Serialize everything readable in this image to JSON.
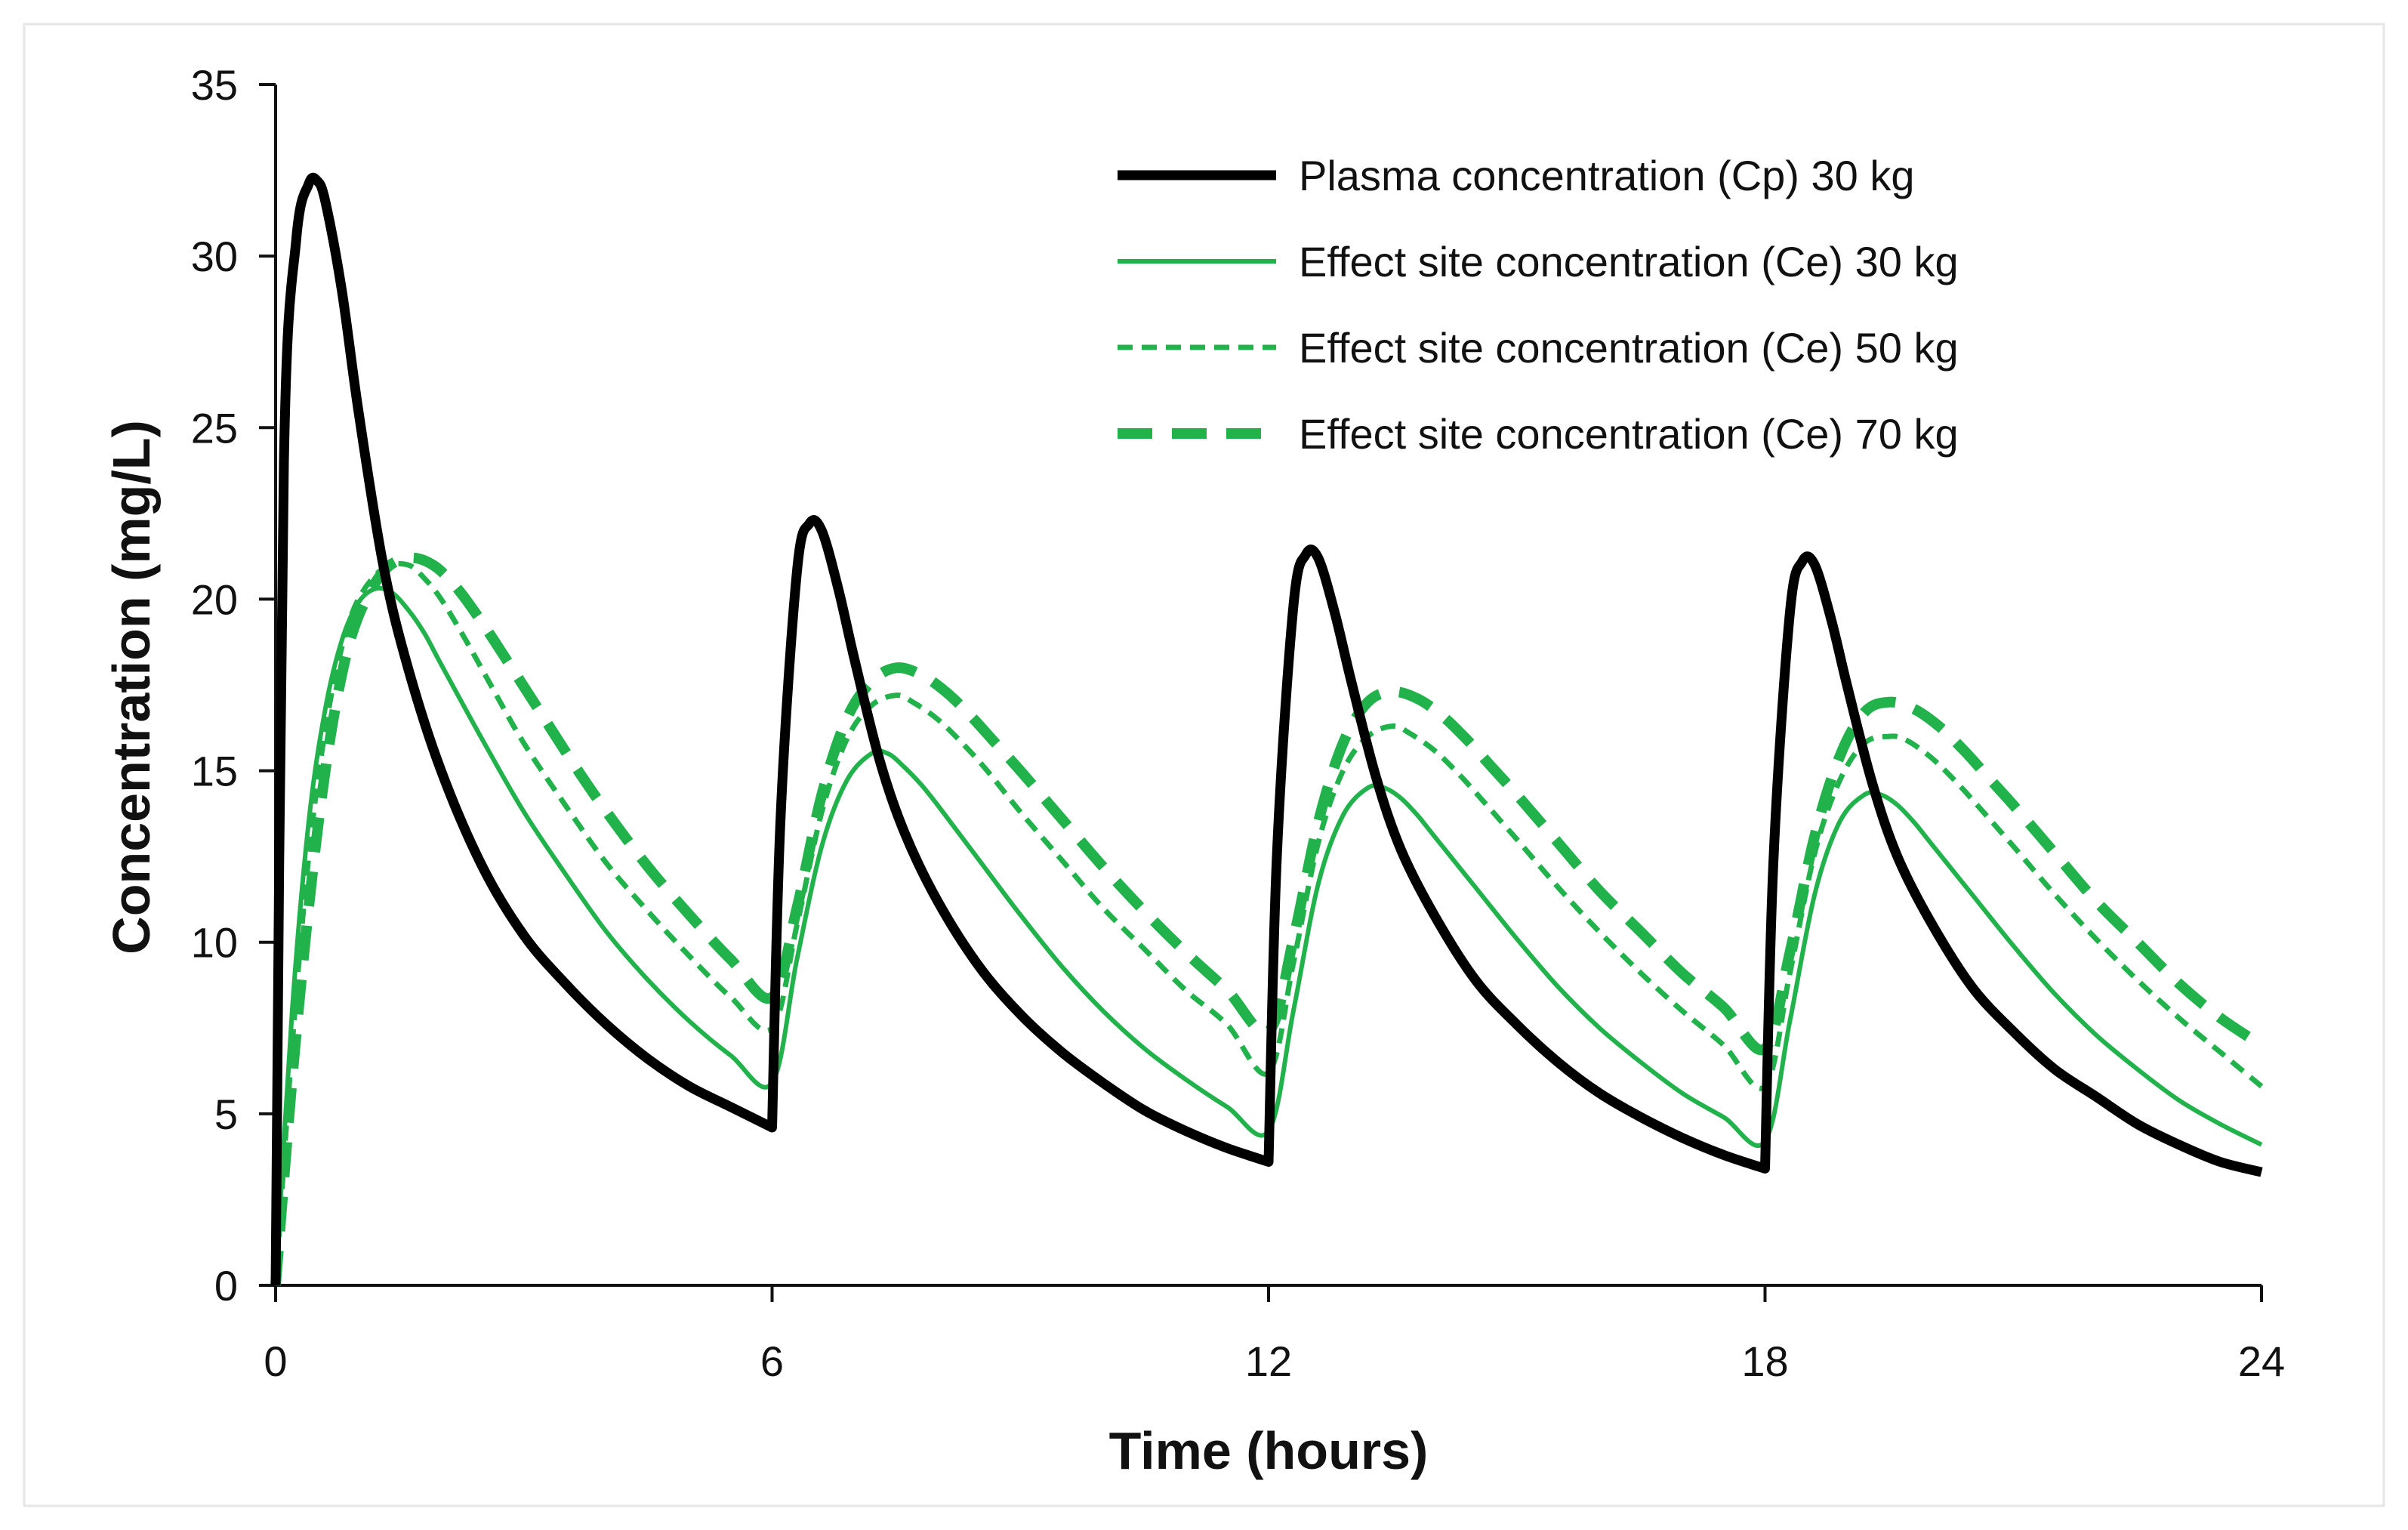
{
  "chart_data": {
    "type": "line",
    "title": "",
    "xlabel": "Time (hours)",
    "ylabel": "Concentration (mg/L)",
    "xlim": [
      0,
      24
    ],
    "ylim": [
      0,
      35
    ],
    "xticks": [
      0,
      6,
      12,
      18,
      24
    ],
    "yticks": [
      0,
      5,
      10,
      15,
      20,
      25,
      30,
      35
    ],
    "xtick_labels": [
      "0",
      "6",
      "12",
      "18",
      "24"
    ],
    "ytick_labels": [
      "0",
      "5",
      "10",
      "15",
      "20",
      "25",
      "30",
      "35"
    ],
    "grid": false,
    "legend_position": "top-right",
    "series": [
      {
        "name": "Plasma concentration (Cp) 30 kg",
        "color": "#000000",
        "style": "solid-thick",
        "x": [
          0,
          0.1,
          0.25,
          0.4,
          0.5,
          0.6,
          0.8,
          1.0,
          1.3,
          1.6,
          2.0,
          2.5,
          3.0,
          3.5,
          4.0,
          4.5,
          5.0,
          5.5,
          6.0,
          6.0,
          6.1,
          6.3,
          6.45,
          6.6,
          6.8,
          7.0,
          7.3,
          7.6,
          8.0,
          8.5,
          9.0,
          9.5,
          10.0,
          10.5,
          11.0,
          11.5,
          12.0,
          12.0,
          12.1,
          12.3,
          12.45,
          12.6,
          12.8,
          13.0,
          13.3,
          13.6,
          14.0,
          14.5,
          15.0,
          15.5,
          16.0,
          16.5,
          17.0,
          17.5,
          18.0,
          18.0,
          18.1,
          18.3,
          18.45,
          18.6,
          18.8,
          19.0,
          19.3,
          19.6,
          20.0,
          20.5,
          21.0,
          21.5,
          22.0,
          22.5,
          23.0,
          23.5,
          24.0
        ],
        "values": [
          0,
          24,
          30.5,
          32.1,
          32.2,
          31.6,
          29.0,
          25.5,
          21.0,
          18.0,
          15.0,
          12.2,
          10.2,
          8.8,
          7.6,
          6.6,
          5.8,
          5.2,
          4.6,
          4.6,
          13.5,
          20.8,
          22.2,
          22.0,
          20.3,
          18.2,
          15.3,
          13.2,
          11.2,
          9.3,
          7.9,
          6.8,
          5.9,
          5.1,
          4.5,
          4.0,
          3.6,
          3.6,
          12.5,
          19.8,
          21.3,
          21.2,
          19.6,
          17.6,
          14.8,
          12.7,
          10.8,
          8.9,
          7.6,
          6.5,
          5.6,
          4.9,
          4.3,
          3.8,
          3.4,
          3.4,
          12.3,
          19.6,
          21.1,
          21.0,
          19.4,
          17.4,
          14.6,
          12.5,
          10.6,
          8.7,
          7.4,
          6.3,
          5.5,
          4.7,
          4.1,
          3.6,
          3.3
        ]
      },
      {
        "name": "Effect site concentration (Ce) 30 kg",
        "color": "#22b24c",
        "style": "solid-thin",
        "x": [
          0,
          0.2,
          0.4,
          0.6,
          0.8,
          1.0,
          1.2,
          1.4,
          1.6,
          1.8,
          2.0,
          2.5,
          3.0,
          3.5,
          4.0,
          4.5,
          5.0,
          5.5,
          6.0,
          6.3,
          6.6,
          6.9,
          7.2,
          7.4,
          7.6,
          7.8,
          8.0,
          8.5,
          9.0,
          9.5,
          10.0,
          10.5,
          11.0,
          11.5,
          12.0,
          12.3,
          12.6,
          12.9,
          13.2,
          13.4,
          13.6,
          13.8,
          14.0,
          14.5,
          15.0,
          15.5,
          16.0,
          16.5,
          17.0,
          17.5,
          18.0,
          18.3,
          18.6,
          18.9,
          19.2,
          19.4,
          19.6,
          19.8,
          20.0,
          20.5,
          21.0,
          21.5,
          22.0,
          22.5,
          23.0,
          23.5,
          24.0
        ],
        "values": [
          0,
          8.0,
          13.5,
          16.8,
          18.8,
          19.9,
          20.3,
          20.2,
          19.7,
          19.0,
          18.1,
          15.9,
          13.8,
          12.0,
          10.3,
          8.9,
          7.7,
          6.7,
          5.9,
          9.5,
          12.8,
          14.7,
          15.5,
          15.5,
          15.1,
          14.6,
          14.0,
          12.4,
          10.8,
          9.3,
          8.0,
          6.9,
          6.0,
          5.2,
          4.5,
          8.0,
          11.7,
          13.7,
          14.5,
          14.5,
          14.2,
          13.7,
          13.1,
          11.6,
          10.1,
          8.7,
          7.5,
          6.5,
          5.6,
          4.9,
          4.2,
          7.7,
          11.4,
          13.5,
          14.3,
          14.3,
          14.0,
          13.5,
          12.9,
          11.4,
          9.9,
          8.5,
          7.3,
          6.3,
          5.4,
          4.7,
          4.1
        ]
      },
      {
        "name": "Effect site concentration (Ce) 50 kg",
        "color": "#22b24c",
        "style": "short-dash",
        "x": [
          0,
          0.2,
          0.4,
          0.6,
          0.8,
          1.0,
          1.3,
          1.6,
          1.8,
          2.0,
          2.3,
          2.6,
          3.0,
          3.5,
          4.0,
          4.5,
          5.0,
          5.5,
          6.0,
          6.3,
          6.6,
          6.9,
          7.2,
          7.5,
          7.7,
          8.0,
          8.3,
          8.6,
          9.0,
          9.5,
          10.0,
          10.5,
          11.0,
          11.5,
          12.0,
          12.3,
          12.6,
          12.9,
          13.2,
          13.5,
          13.7,
          14.0,
          14.3,
          14.6,
          15.0,
          15.5,
          16.0,
          16.5,
          17.0,
          17.5,
          18.0,
          18.3,
          18.6,
          18.9,
          19.2,
          19.5,
          19.7,
          20.0,
          20.3,
          20.6,
          21.0,
          21.5,
          22.0,
          22.5,
          23.0,
          23.5,
          24.0
        ],
        "values": [
          0,
          7.0,
          12.5,
          16.2,
          18.6,
          20.0,
          20.9,
          21.0,
          20.6,
          20.0,
          18.8,
          17.5,
          15.8,
          14.0,
          12.3,
          10.9,
          9.6,
          8.4,
          7.5,
          10.5,
          13.8,
          15.9,
          16.9,
          17.2,
          17.0,
          16.5,
          15.8,
          15.0,
          13.8,
          12.4,
          11.0,
          9.8,
          8.6,
          7.6,
          6.2,
          9.4,
          12.9,
          15.0,
          16.0,
          16.3,
          16.1,
          15.6,
          14.9,
          14.1,
          13.0,
          11.6,
          10.3,
          9.1,
          8.0,
          7.0,
          5.8,
          9.1,
          12.6,
          14.7,
          15.8,
          16.0,
          15.9,
          15.4,
          14.7,
          13.9,
          12.8,
          11.4,
          10.1,
          8.9,
          7.8,
          6.8,
          5.8
        ]
      },
      {
        "name": "Effect site concentration (Ce) 70 kg",
        "color": "#22b24c",
        "style": "long-dash-thick",
        "x": [
          0,
          0.2,
          0.4,
          0.6,
          0.8,
          1.0,
          1.3,
          1.6,
          1.9,
          2.2,
          2.5,
          2.8,
          3.2,
          3.6,
          4.0,
          4.5,
          5.0,
          5.5,
          6.0,
          6.3,
          6.6,
          6.9,
          7.2,
          7.5,
          7.8,
          8.1,
          8.4,
          8.7,
          9.0,
          9.5,
          10.0,
          10.5,
          11.0,
          11.5,
          12.0,
          12.3,
          12.6,
          12.9,
          13.2,
          13.5,
          13.8,
          14.1,
          14.4,
          14.7,
          15.0,
          15.5,
          16.0,
          16.5,
          17.0,
          17.5,
          18.0,
          18.3,
          18.6,
          18.9,
          19.2,
          19.5,
          19.8,
          20.1,
          20.4,
          20.7,
          21.0,
          21.5,
          22.0,
          22.5,
          23.0,
          23.5,
          24.0
        ],
        "values": [
          0,
          6.0,
          11.0,
          15.0,
          17.8,
          19.5,
          20.8,
          21.2,
          21.0,
          20.3,
          19.3,
          18.2,
          16.7,
          15.2,
          13.8,
          12.2,
          10.8,
          9.5,
          8.4,
          11.0,
          14.3,
          16.5,
          17.6,
          18.0,
          17.8,
          17.3,
          16.6,
          15.8,
          15.0,
          13.6,
          12.2,
          10.9,
          9.7,
          8.6,
          7.4,
          10.1,
          13.5,
          15.8,
          17.0,
          17.3,
          17.1,
          16.6,
          15.9,
          15.1,
          14.3,
          12.9,
          11.5,
          10.3,
          9.1,
          8.1,
          6.9,
          9.7,
          13.1,
          15.4,
          16.7,
          17.0,
          16.8,
          16.3,
          15.6,
          14.8,
          14.0,
          12.6,
          11.2,
          10.0,
          8.8,
          7.8,
          7.0
        ]
      }
    ]
  }
}
